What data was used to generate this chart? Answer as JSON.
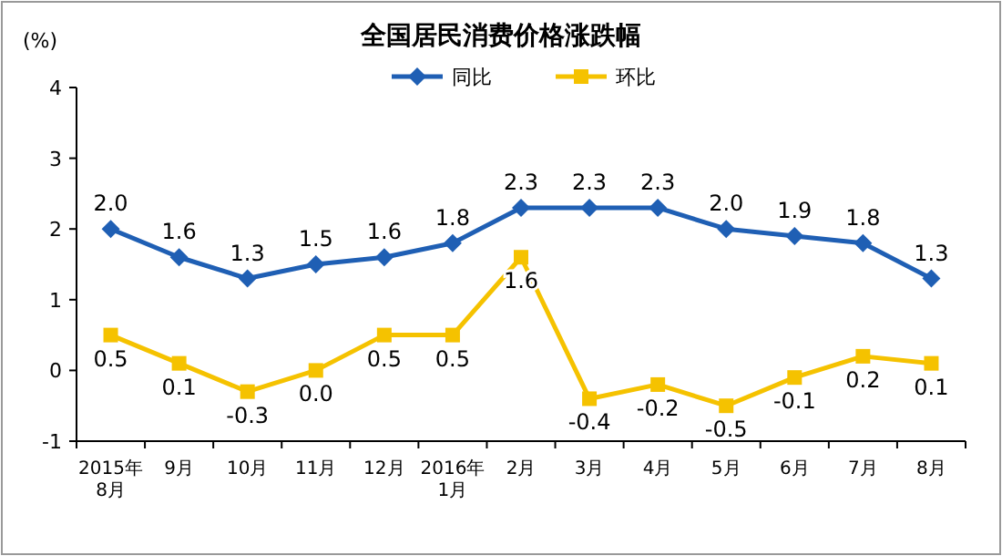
{
  "chart_data": {
    "type": "line",
    "title": "全国居民消费价格涨跌幅",
    "ylabel": "(%)",
    "categories": [
      "2015年\n8月",
      "9月",
      "10月",
      "11月",
      "12月",
      "2016年\n1月",
      "2月",
      "3月",
      "4月",
      "5月",
      "6月",
      "7月",
      "8月"
    ],
    "series": [
      {
        "name": "同比",
        "color": "#1f5fb4",
        "marker": "diamond",
        "values": [
          2.0,
          1.6,
          1.3,
          1.5,
          1.6,
          1.8,
          2.3,
          2.3,
          2.3,
          2.0,
          1.9,
          1.8,
          1.3
        ],
        "value_labels": [
          "2.0",
          "1.6",
          "1.3",
          "1.5",
          "1.6",
          "1.8",
          "2.3",
          "2.3",
          "2.3",
          "2.0",
          "1.9",
          "1.8",
          "1.3"
        ]
      },
      {
        "name": "环比",
        "color": "#f5c200",
        "marker": "square",
        "values": [
          0.5,
          0.1,
          -0.3,
          0.0,
          0.5,
          0.5,
          1.6,
          -0.4,
          -0.2,
          -0.5,
          -0.1,
          0.2,
          0.1
        ],
        "value_labels": [
          "0.5",
          "0.1",
          "-0.3",
          "0.0",
          "0.5",
          "0.5",
          "1.6",
          "-0.4",
          "-0.2",
          "-0.5",
          "-0.1",
          "0.2",
          "0.1"
        ]
      }
    ],
    "ylim": [
      -1,
      4
    ],
    "yticks": [
      -1,
      0,
      1,
      2,
      3,
      4
    ],
    "legend": "top"
  }
}
